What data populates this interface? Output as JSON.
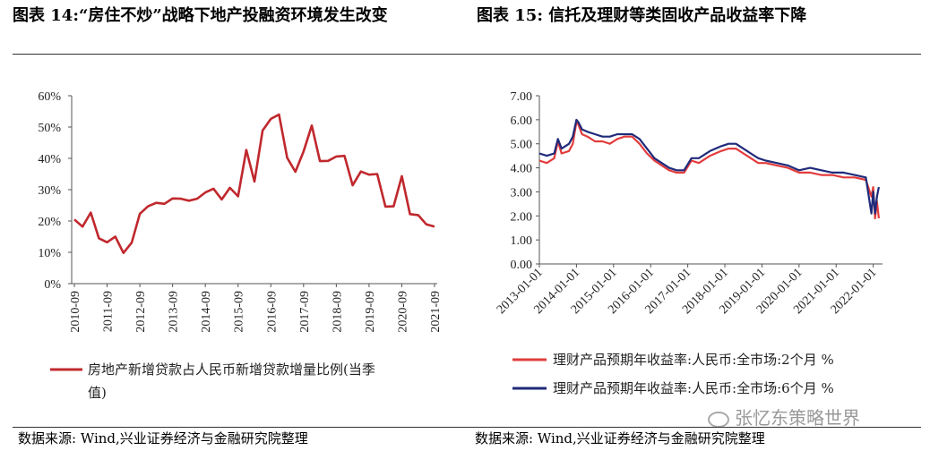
{
  "header": {
    "left_title": "图表 14:“房住不炒”战略下地产投融资环境发生改变",
    "right_title": "图表 15: 信托及理财等类固收产品收益率下降"
  },
  "footer": {
    "left_source": "数据来源: Wind,兴业证券经济与金融研究院整理",
    "right_source": "数据来源: Wind,兴业证券经济与金融研究院整理",
    "watermark": "张忆东策略世界"
  },
  "chart_data": [
    {
      "type": "line",
      "title": "",
      "ylim": [
        0,
        60
      ],
      "yticks": [
        "0%",
        "10%",
        "20%",
        "30%",
        "40%",
        "50%",
        "60%"
      ],
      "xticks": [
        "2010-09",
        "2011-09",
        "2012-09",
        "2013-09",
        "2014-09",
        "2015-09",
        "2016-09",
        "2017-09",
        "2018-09",
        "2019-09",
        "2020-09",
        "2021-09"
      ],
      "grid": false,
      "legend_position": "bottom",
      "series": [
        {
          "name": "房地产新增贷款占人民币新增贷款增量比例(当季值)",
          "color": "#C0282D",
          "values": [
            20.5,
            18.2,
            22.7,
            14.5,
            13.2,
            15,
            9.8,
            13.1,
            22.3,
            24.7,
            25.8,
            25.5,
            27.2,
            27.1,
            26.5,
            27.1,
            29.1,
            30.3,
            26.9,
            30.6,
            27.9,
            42.7,
            32.6,
            48.9,
            52.6,
            54,
            40.2,
            35.7,
            42.2,
            50.5,
            39.1,
            39.2,
            40.6,
            40.8,
            31.4,
            35.8,
            34.8,
            35,
            24.6,
            24.7,
            34.3,
            22.2,
            21.9,
            18.9,
            18.2
          ]
        }
      ]
    },
    {
      "type": "line",
      "title": "",
      "ylim": [
        0,
        7
      ],
      "yticks": [
        "0.00",
        "1.00",
        "2.00",
        "3.00",
        "4.00",
        "5.00",
        "6.00",
        "7.00"
      ],
      "xticks": [
        "2013-01-01",
        "2014-01-01",
        "2015-01-01",
        "2016-01-01",
        "2017-01-01",
        "2018-01-01",
        "2019-01-01",
        "2020-01-01",
        "2021-01-01",
        "2022-01-01"
      ],
      "grid": false,
      "legend_position": "bottom",
      "series": [
        {
          "name": "理财产品预期年收益率:人民币:全市场:2个月 %",
          "color": "#E23C3C",
          "x": [
            2013.0,
            2013.2,
            2013.4,
            2013.5,
            2013.6,
            2013.8,
            2013.9,
            2014.0,
            2014.05,
            2014.15,
            2014.3,
            2014.5,
            2014.7,
            2014.9,
            2015.1,
            2015.3,
            2015.5,
            2015.7,
            2015.9,
            2016.1,
            2016.3,
            2016.5,
            2016.7,
            2016.9,
            2017.1,
            2017.3,
            2017.6,
            2017.9,
            2018.1,
            2018.3,
            2018.5,
            2018.7,
            2018.9,
            2019.1,
            2019.4,
            2019.7,
            2020.0,
            2020.3,
            2020.6,
            2020.9,
            2021.2,
            2021.5,
            2021.8,
            2021.95,
            2022.0,
            2022.05,
            2022.1,
            2022.15
          ],
          "values": [
            4.3,
            4.2,
            4.4,
            5.1,
            4.6,
            4.7,
            5.0,
            5.9,
            5.8,
            5.4,
            5.3,
            5.1,
            5.1,
            5.0,
            5.2,
            5.3,
            5.3,
            5.0,
            4.6,
            4.3,
            4.1,
            3.9,
            3.8,
            3.8,
            4.3,
            4.2,
            4.5,
            4.7,
            4.8,
            4.8,
            4.6,
            4.4,
            4.2,
            4.2,
            4.1,
            4.0,
            3.8,
            3.8,
            3.7,
            3.7,
            3.6,
            3.6,
            3.5,
            2.8,
            3.2,
            1.9,
            2.6,
            1.9
          ]
        },
        {
          "name": "理财产品预期年收益率:人民币:全市场:6个月 %",
          "color": "#1F2A7A",
          "x": [
            2013.0,
            2013.2,
            2013.4,
            2013.5,
            2013.6,
            2013.8,
            2013.9,
            2014.0,
            2014.05,
            2014.15,
            2014.3,
            2014.5,
            2014.7,
            2014.9,
            2015.1,
            2015.3,
            2015.5,
            2015.7,
            2015.9,
            2016.1,
            2016.3,
            2016.5,
            2016.7,
            2016.9,
            2017.1,
            2017.3,
            2017.6,
            2017.9,
            2018.1,
            2018.3,
            2018.5,
            2018.7,
            2018.9,
            2019.1,
            2019.4,
            2019.7,
            2020.0,
            2020.3,
            2020.6,
            2020.9,
            2021.2,
            2021.5,
            2021.8,
            2021.95,
            2022.0,
            2022.05,
            2022.1,
            2022.15
          ],
          "values": [
            4.6,
            4.5,
            4.6,
            5.2,
            4.8,
            5.0,
            5.3,
            6.0,
            5.9,
            5.6,
            5.5,
            5.4,
            5.3,
            5.3,
            5.4,
            5.4,
            5.4,
            5.2,
            4.8,
            4.4,
            4.2,
            4.0,
            3.9,
            3.9,
            4.4,
            4.4,
            4.7,
            4.9,
            5.0,
            5.0,
            4.8,
            4.6,
            4.4,
            4.3,
            4.2,
            4.1,
            3.9,
            4.0,
            3.9,
            3.8,
            3.8,
            3.7,
            3.6,
            2.1,
            3.0,
            2.1,
            2.8,
            3.2
          ]
        }
      ]
    }
  ]
}
